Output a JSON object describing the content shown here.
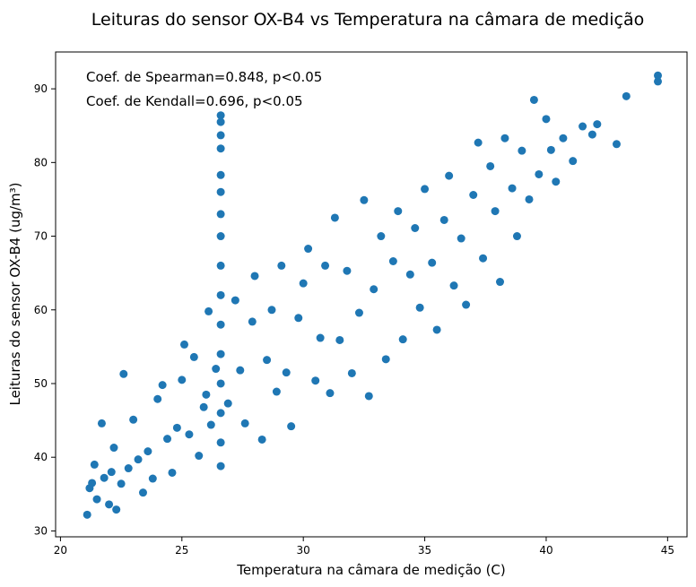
{
  "chart_data": {
    "type": "scatter",
    "title": "Leituras do sensor OX-B4 vs Temperatura na câmara de medição",
    "xlabel": "Temperatura na câmara de medição (C)",
    "ylabel": "Leituras do sensor OX-B4 (ug/m³)",
    "xlim": [
      19.8,
      45.8
    ],
    "ylim": [
      29.2,
      95.0
    ],
    "xticks": [
      20,
      25,
      30,
      35,
      40,
      45
    ],
    "yticks": [
      30,
      40,
      50,
      60,
      70,
      80,
      90
    ],
    "grid": false,
    "legend": "none",
    "marker_color": "#1f77b4",
    "annotations": [
      "Coef. de Spearman=0.848, p<0.05",
      "Coef. de Kendall=0.696, p<0.05"
    ],
    "points_note": "approx. 2000 points; sample of readable points below, remainder follow same bands",
    "points": [
      [
        21.1,
        32.2
      ],
      [
        21.2,
        35.8
      ],
      [
        21.3,
        36.5
      ],
      [
        21.4,
        39.0
      ],
      [
        21.5,
        34.3
      ],
      [
        21.7,
        44.6
      ],
      [
        21.8,
        37.2
      ],
      [
        22.0,
        33.6
      ],
      [
        22.1,
        38.0
      ],
      [
        22.2,
        41.3
      ],
      [
        22.3,
        32.9
      ],
      [
        22.5,
        36.4
      ],
      [
        22.6,
        51.3
      ],
      [
        22.8,
        38.5
      ],
      [
        23.0,
        45.1
      ],
      [
        23.2,
        39.7
      ],
      [
        23.4,
        35.2
      ],
      [
        23.6,
        40.8
      ],
      [
        23.8,
        37.1
      ],
      [
        24.0,
        47.9
      ],
      [
        24.2,
        49.8
      ],
      [
        24.4,
        42.5
      ],
      [
        24.6,
        37.9
      ],
      [
        24.8,
        44.0
      ],
      [
        25.0,
        50.5
      ],
      [
        25.1,
        55.3
      ],
      [
        25.3,
        43.1
      ],
      [
        25.5,
        53.6
      ],
      [
        25.7,
        40.2
      ],
      [
        25.9,
        46.8
      ],
      [
        26.0,
        48.5
      ],
      [
        26.1,
        59.8
      ],
      [
        26.2,
        44.4
      ],
      [
        26.4,
        52.0
      ],
      [
        26.6,
        38.8
      ],
      [
        26.6,
        42.0
      ],
      [
        26.6,
        46.0
      ],
      [
        26.6,
        50.0
      ],
      [
        26.6,
        54.0
      ],
      [
        26.6,
        58.0
      ],
      [
        26.6,
        62.0
      ],
      [
        26.6,
        66.0
      ],
      [
        26.6,
        70.0
      ],
      [
        26.6,
        73.0
      ],
      [
        26.6,
        76.0
      ],
      [
        26.6,
        78.3
      ],
      [
        26.6,
        81.9
      ],
      [
        26.6,
        83.7
      ],
      [
        26.6,
        85.5
      ],
      [
        26.6,
        86.4
      ],
      [
        26.9,
        47.3
      ],
      [
        27.2,
        61.3
      ],
      [
        27.4,
        51.8
      ],
      [
        27.6,
        44.6
      ],
      [
        27.9,
        58.4
      ],
      [
        28.0,
        64.6
      ],
      [
        28.3,
        42.4
      ],
      [
        28.5,
        53.2
      ],
      [
        28.7,
        60.0
      ],
      [
        28.9,
        48.9
      ],
      [
        29.1,
        66.0
      ],
      [
        29.3,
        51.5
      ],
      [
        29.5,
        44.2
      ],
      [
        29.8,
        58.9
      ],
      [
        30.0,
        63.6
      ],
      [
        30.2,
        68.3
      ],
      [
        30.5,
        50.4
      ],
      [
        30.7,
        56.2
      ],
      [
        30.9,
        66.0
      ],
      [
        31.1,
        48.7
      ],
      [
        31.3,
        72.5
      ],
      [
        31.5,
        55.9
      ],
      [
        31.8,
        65.3
      ],
      [
        32.0,
        51.4
      ],
      [
        32.3,
        59.6
      ],
      [
        32.5,
        74.9
      ],
      [
        32.7,
        48.3
      ],
      [
        32.9,
        62.8
      ],
      [
        33.2,
        70.0
      ],
      [
        33.4,
        53.3
      ],
      [
        33.7,
        66.6
      ],
      [
        33.9,
        73.4
      ],
      [
        34.1,
        56.0
      ],
      [
        34.4,
        64.8
      ],
      [
        34.6,
        71.1
      ],
      [
        34.8,
        60.3
      ],
      [
        35.0,
        76.4
      ],
      [
        35.3,
        66.4
      ],
      [
        35.5,
        57.3
      ],
      [
        35.8,
        72.2
      ],
      [
        36.0,
        78.2
      ],
      [
        36.2,
        63.3
      ],
      [
        36.5,
        69.7
      ],
      [
        36.7,
        60.7
      ],
      [
        37.0,
        75.6
      ],
      [
        37.2,
        82.7
      ],
      [
        37.4,
        67.0
      ],
      [
        37.7,
        79.5
      ],
      [
        37.9,
        73.4
      ],
      [
        38.1,
        63.8
      ],
      [
        38.3,
        83.3
      ],
      [
        38.6,
        76.5
      ],
      [
        38.8,
        70.0
      ],
      [
        39.0,
        81.6
      ],
      [
        39.3,
        75.0
      ],
      [
        39.5,
        88.5
      ],
      [
        39.7,
        78.4
      ],
      [
        40.0,
        85.9
      ],
      [
        40.2,
        81.7
      ],
      [
        40.4,
        77.4
      ],
      [
        40.7,
        83.3
      ],
      [
        41.1,
        80.2
      ],
      [
        41.5,
        84.9
      ],
      [
        41.9,
        83.8
      ],
      [
        42.1,
        85.2
      ],
      [
        42.9,
        82.5
      ],
      [
        43.3,
        89.0
      ],
      [
        44.6,
        91.0
      ],
      [
        44.6,
        91.8
      ]
    ]
  }
}
